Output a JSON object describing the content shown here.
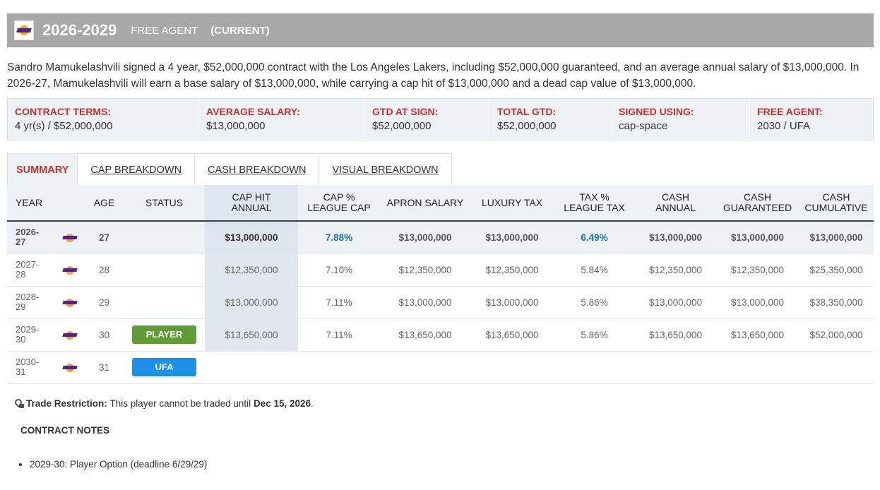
{
  "header": {
    "years": "2026-2029",
    "status": "FREE AGENT",
    "current": "(CURRENT)",
    "logo_icon": "lakers-logo-icon"
  },
  "summary": "Sandro Mamukelashvili signed a 4 year, $52,000,000 contract with the Los Angeles Lakers, including $52,000,000 guaranteed, and an average annual salary of $13,000,000. In 2026-27, Mamukelashvili will earn a base salary of $13,000,000, while carrying a cap hit of $13,000,000 and a dead cap value of $13,000,000.",
  "terms": [
    {
      "label": "CONTRACT TERMS:",
      "value": "4 yr(s) / $52,000,000"
    },
    {
      "label": "AVERAGE SALARY:",
      "value": "$13,000,000"
    },
    {
      "label": "GTD AT SIGN:",
      "value": "$52,000,000"
    },
    {
      "label": "TOTAL GTD:",
      "value": "$52,000,000"
    },
    {
      "label": "SIGNED USING:",
      "value": "cap-space"
    },
    {
      "label": "FREE AGENT:",
      "value": "2030 / UFA"
    }
  ],
  "tabs": [
    "SUMMARY",
    "CAP BREAKDOWN",
    "CASH BREAKDOWN",
    "VISUAL BREAKDOWN"
  ],
  "columns": {
    "year": "YEAR",
    "age": "AGE",
    "status": "STATUS",
    "cap_hit_1": "CAP HIT",
    "cap_hit_2": "ANNUAL",
    "cap_pct_1": "CAP %",
    "cap_pct_2": "LEAGUE CAP",
    "apron": "APRON SALARY",
    "lux": "LUXURY TAX",
    "tax_pct_1": "TAX %",
    "tax_pct_2": "LEAGUE TAX",
    "cash_annual_1": "CASH",
    "cash_annual_2": "ANNUAL",
    "cash_gtd_1": "CASH",
    "cash_gtd_2": "GUARANTEED",
    "cash_cum_1": "CASH",
    "cash_cum_2": "CUMULATIVE"
  },
  "rows": [
    {
      "year_a": "2026-",
      "year_b": "27",
      "age": "27",
      "status": "",
      "cap_hit": "$13,000,000",
      "cap_pct": "7.88%",
      "apron": "$13,000,000",
      "lux": "$13,000,000",
      "tax_pct": "6.49%",
      "cash_annual": "$13,000,000",
      "cash_gtd": "$13,000,000",
      "cash_cum": "$13,000,000"
    },
    {
      "year_a": "2027-",
      "year_b": "28",
      "age": "28",
      "status": "",
      "cap_hit": "$12,350,000",
      "cap_pct": "7.10%",
      "apron": "$12,350,000",
      "lux": "$12,350,000",
      "tax_pct": "5.84%",
      "cash_annual": "$12,350,000",
      "cash_gtd": "$12,350,000",
      "cash_cum": "$25,350,000"
    },
    {
      "year_a": "2028-",
      "year_b": "29",
      "age": "29",
      "status": "",
      "cap_hit": "$13,000,000",
      "cap_pct": "7.11%",
      "apron": "$13,000,000",
      "lux": "$13,000,000",
      "tax_pct": "5.86%",
      "cash_annual": "$13,000,000",
      "cash_gtd": "$13,000,000",
      "cash_cum": "$38,350,000"
    },
    {
      "year_a": "2029-",
      "year_b": "30",
      "age": "30",
      "status": "PLAYER",
      "cap_hit": "$13,650,000",
      "cap_pct": "7.11%",
      "apron": "$13,650,000",
      "lux": "$13,650,000",
      "tax_pct": "5.86%",
      "cash_annual": "$13,650,000",
      "cash_gtd": "$13,650,000",
      "cash_cum": "$52,000,000"
    },
    {
      "year_a": "2030-",
      "year_b": "31",
      "age": "31",
      "status": "UFA"
    }
  ],
  "trade": {
    "label": "Trade Restriction:",
    "text": "This player cannot be traded until",
    "date": "Dec 15, 2026",
    "end": "."
  },
  "notes_title": "CONTRACT NOTES",
  "notes": [
    "2029-30: Player Option (deadline 6/29/29)"
  ],
  "colors": {
    "header_bg": "#a8a8a8",
    "accent_red": "#c8312f",
    "player_badge": "#5e9c35",
    "ufa_badge": "#1e8fe6"
  }
}
